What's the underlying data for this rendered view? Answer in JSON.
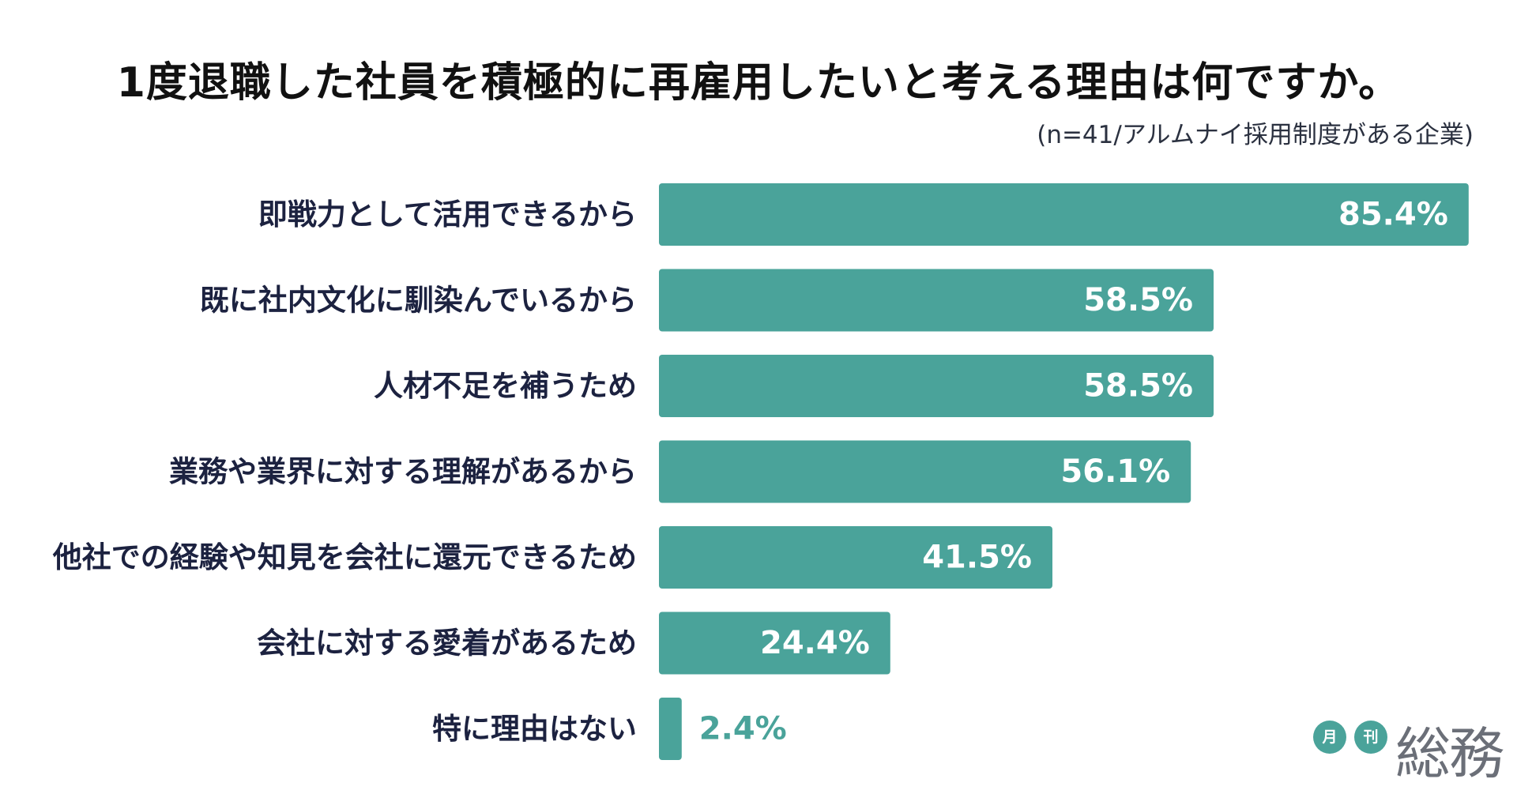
{
  "chart_data": {
    "type": "bar",
    "orientation": "horizontal",
    "title": "1度退職した社員を積極的に再雇用したいと考える理由は何ですか。",
    "subtitle": "(n=41/アルムナイ採用制度がある企業)",
    "categories": [
      "即戦力として活用できるから",
      "既に社内文化に馴染んでいるから",
      "人材不足を補うため",
      "業務や業界に対する理解があるから",
      "他社での経験や知見を会社に還元できるため",
      "会社に対する愛着があるため",
      "特に理由はない"
    ],
    "values": [
      85.4,
      58.5,
      58.5,
      56.1,
      41.5,
      24.4,
      2.4
    ],
    "value_labels": [
      "85.4%",
      "58.5%",
      "58.5%",
      "56.1%",
      "41.5%",
      "24.4%",
      "2.4%"
    ],
    "xlim": [
      0,
      100
    ],
    "xlabel": "",
    "ylabel": "",
    "grid": false,
    "legend": "none",
    "bar_color": "#4aa39a",
    "label_color": "#1c2240",
    "value_label_color": "#ffffff"
  },
  "branding": {
    "logo_dot_1": "月",
    "logo_dot_2": "刊",
    "logo_name": "総務"
  }
}
